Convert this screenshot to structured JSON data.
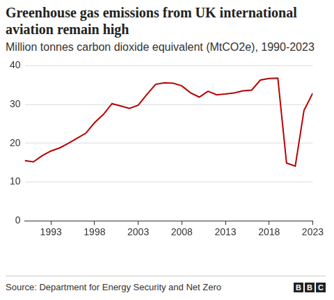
{
  "chart_data": {
    "type": "line",
    "title": "Greenhouse gas emissions from UK international aviation remain high",
    "subtitle": "Million tonnes carbon dioxide equivalent (MtCO2e), 1990-2023",
    "source": "Source: Department for Energy Security and Net Zero",
    "logo": "BBC",
    "x": [
      1990,
      1991,
      1992,
      1993,
      1994,
      1995,
      1996,
      1997,
      1998,
      1999,
      2000,
      2001,
      2002,
      2003,
      2004,
      2005,
      2006,
      2007,
      2008,
      2009,
      2010,
      2011,
      2012,
      2013,
      2014,
      2015,
      2016,
      2017,
      2018,
      2019,
      2020,
      2021,
      2022,
      2023
    ],
    "values": [
      15.5,
      15.2,
      16.8,
      18.0,
      18.8,
      20.0,
      21.3,
      22.6,
      25.3,
      27.4,
      30.2,
      29.6,
      29.0,
      29.8,
      32.6,
      35.2,
      35.6,
      35.5,
      34.8,
      33.0,
      31.9,
      33.4,
      32.5,
      32.7,
      33.0,
      33.5,
      33.7,
      36.3,
      36.7,
      36.8,
      14.9,
      14.1,
      28.5,
      32.9
    ],
    "color": "#b80000",
    "xlim": [
      1990,
      2023
    ],
    "xticks": [
      1993,
      1998,
      2003,
      2008,
      2013,
      2018,
      2023
    ],
    "ylim": [
      0,
      40
    ],
    "yticks": [
      0,
      10,
      20,
      30,
      40
    ],
    "grid": true
  }
}
